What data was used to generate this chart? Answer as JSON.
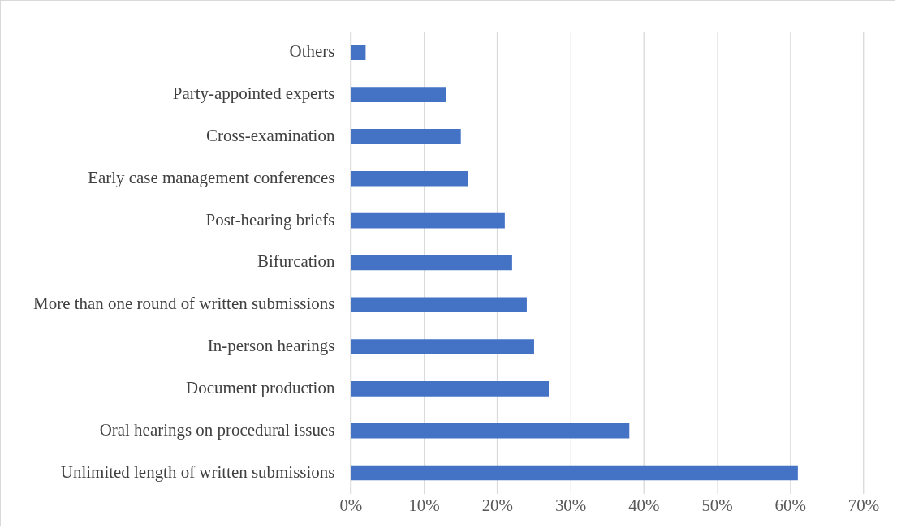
{
  "chart_data": {
    "type": "bar",
    "orientation": "horizontal",
    "categories": [
      "Others",
      "Party-appointed experts",
      "Cross-examination",
      "Early case management conferences",
      "Post-hearing briefs",
      "Bifurcation",
      "More than one round of written submissions",
      "In-person hearings",
      "Document production",
      "Oral hearings on procedural issues",
      "Unlimited length of written submissions"
    ],
    "values": [
      2,
      13,
      15,
      16,
      21,
      22,
      24,
      25,
      27,
      38,
      61
    ],
    "color": "#4472c4",
    "xlim": [
      0,
      70
    ],
    "xticks": [
      {
        "value": 0,
        "label": "0%"
      },
      {
        "value": 10,
        "label": "10%"
      },
      {
        "value": 20,
        "label": "20%"
      },
      {
        "value": 30,
        "label": "30%"
      },
      {
        "value": 40,
        "label": "40%"
      },
      {
        "value": 50,
        "label": "50%"
      },
      {
        "value": 60,
        "label": "60%"
      },
      {
        "value": 70,
        "label": "70%"
      }
    ],
    "grid": "x",
    "legend": false
  }
}
